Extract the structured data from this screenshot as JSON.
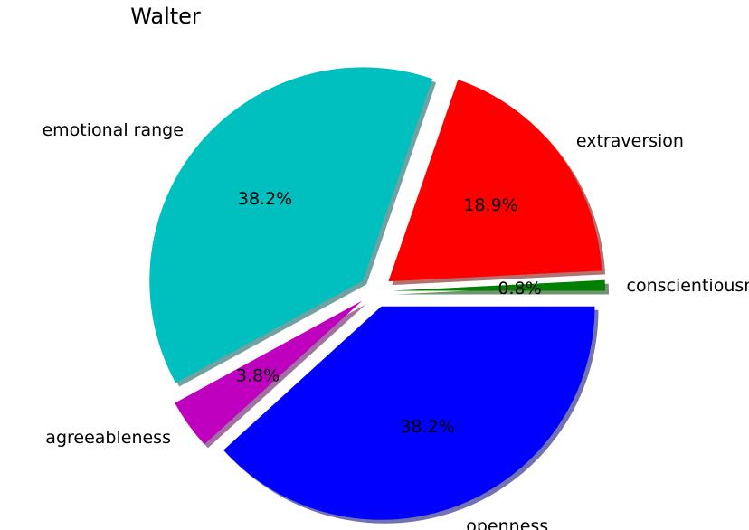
{
  "chart_data": {
    "type": "pie",
    "title": "Walter",
    "slices": [
      {
        "label": "openness",
        "value": 38.2,
        "pct_label": "38.2%",
        "color": "#0000ff"
      },
      {
        "label": "agreeableness",
        "value": 3.8,
        "pct_label": "3.8%",
        "color": "#bf00bf"
      },
      {
        "label": "emotional range",
        "value": 38.2,
        "pct_label": "38.2%",
        "color": "#00bfbf"
      },
      {
        "label": "extraversion",
        "value": 18.9,
        "pct_label": "18.9%",
        "color": "#ff0000"
      },
      {
        "label": "conscientiousness",
        "value": 0.8,
        "pct_label": "0.8%",
        "color": "#008000"
      }
    ],
    "shadow": true,
    "exploded": true
  }
}
